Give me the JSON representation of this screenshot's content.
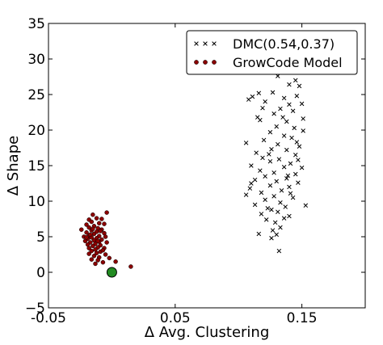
{
  "chart_data": {
    "type": "scatter",
    "xlabel": "Δ Avg. Clustering",
    "ylabel": "Δ Shape",
    "xlim": [
      -0.05,
      0.2
    ],
    "ylim": [
      -5,
      35
    ],
    "xticks": [
      {
        "value": -0.05,
        "label": "-0.05"
      },
      {
        "value": 0.05,
        "label": "0.05"
      },
      {
        "value": 0.15,
        "label": "0.15"
      }
    ],
    "yticks": [
      {
        "value": 35,
        "label": "35"
      },
      {
        "value": 30,
        "label": "30"
      },
      {
        "value": 25,
        "label": "25"
      },
      {
        "value": 20,
        "label": "20"
      },
      {
        "value": 15,
        "label": "15"
      },
      {
        "value": 10,
        "label": "10"
      },
      {
        "value": 5,
        "label": "5"
      },
      {
        "value": 0,
        "label": "0"
      },
      {
        "value": -5,
        "label": "−5"
      }
    ],
    "grid": false,
    "legend_position": "top-right",
    "legend": [
      {
        "label": "DMC(0.54,0.37)",
        "marker": "x",
        "color": "#000000"
      },
      {
        "label": "GrowCode Model",
        "marker": "circle",
        "color": "#8b0000"
      }
    ],
    "series": [
      {
        "name": "DMC(0.54,0.37)",
        "marker": "x",
        "color": "#000000",
        "points": [
          [
            0.131,
            27.6
          ],
          [
            0.14,
            26.4
          ],
          [
            0.148,
            26.2
          ],
          [
            0.145,
            27.0
          ],
          [
            0.127,
            25.3
          ],
          [
            0.116,
            25.2
          ],
          [
            0.108,
            24.3
          ],
          [
            0.111,
            24.7
          ],
          [
            0.136,
            24.5
          ],
          [
            0.146,
            24.8
          ],
          [
            0.121,
            24.0
          ],
          [
            0.14,
            23.6
          ],
          [
            0.15,
            23.7
          ],
          [
            0.133,
            23.0
          ],
          [
            0.143,
            22.7
          ],
          [
            0.128,
            22.3
          ],
          [
            0.115,
            21.8
          ],
          [
            0.151,
            21.6
          ],
          [
            0.117,
            21.4
          ],
          [
            0.138,
            21.2
          ],
          [
            0.13,
            20.5
          ],
          [
            0.144,
            20.3
          ],
          [
            0.125,
            19.7
          ],
          [
            0.151,
            19.9
          ],
          [
            0.136,
            19.2
          ],
          [
            0.12,
            18.6
          ],
          [
            0.142,
            18.9
          ],
          [
            0.106,
            18.2
          ],
          [
            0.131,
            18.0
          ],
          [
            0.148,
            17.7
          ],
          [
            0.126,
            17.3
          ],
          [
            0.138,
            17.2
          ],
          [
            0.114,
            16.8
          ],
          [
            0.145,
            16.5
          ],
          [
            0.119,
            16.1
          ],
          [
            0.132,
            15.9
          ],
          [
            0.125,
            15.6
          ],
          [
            0.141,
            15.3
          ],
          [
            0.11,
            15.0
          ],
          [
            0.136,
            14.8
          ],
          [
            0.15,
            14.7
          ],
          [
            0.117,
            14.3
          ],
          [
            0.128,
            14.0
          ],
          [
            0.145,
            13.8
          ],
          [
            0.121,
            13.5
          ],
          [
            0.138,
            13.2
          ],
          [
            0.113,
            13.0
          ],
          [
            0.13,
            12.8
          ],
          [
            0.147,
            12.6
          ],
          [
            0.125,
            12.2
          ],
          [
            0.14,
            12.0
          ],
          [
            0.109,
            11.8
          ],
          [
            0.134,
            11.5
          ],
          [
            0.118,
            11.2
          ],
          [
            0.106,
            10.9
          ],
          [
            0.128,
            10.7
          ],
          [
            0.143,
            10.5
          ],
          [
            0.121,
            10.2
          ],
          [
            0.133,
            9.8
          ],
          [
            0.113,
            9.5
          ],
          [
            0.153,
            9.4
          ],
          [
            0.137,
            9.2
          ],
          [
            0.126,
            8.8
          ],
          [
            0.131,
            8.5
          ],
          [
            0.118,
            8.2
          ],
          [
            0.14,
            7.9
          ],
          [
            0.136,
            7.6
          ],
          [
            0.122,
            7.4
          ],
          [
            0.129,
            7.0
          ],
          [
            0.133,
            6.3
          ],
          [
            0.127,
            5.9
          ],
          [
            0.116,
            5.4
          ],
          [
            0.13,
            5.3
          ],
          [
            0.126,
            4.8
          ],
          [
            0.132,
            3.0
          ],
          [
            0.141,
            11.1
          ],
          [
            0.11,
            12.5
          ],
          [
            0.124,
            16.6
          ],
          [
            0.146,
            18.3
          ],
          [
            0.135,
            21.8
          ],
          [
            0.119,
            23.1
          ],
          [
            0.139,
            13.6
          ],
          [
            0.123,
            9.0
          ],
          [
            0.147,
            15.8
          ]
        ]
      },
      {
        "name": "GrowCode Model",
        "marker": "circle",
        "color": "#8b0000",
        "points": [
          [
            -0.015,
            8.1
          ],
          [
            -0.004,
            8.4
          ],
          [
            -0.012,
            7.6
          ],
          [
            -0.018,
            7.4
          ],
          [
            -0.008,
            7.5
          ],
          [
            -0.016,
            7.1
          ],
          [
            -0.01,
            6.9
          ],
          [
            -0.02,
            6.7
          ],
          [
            -0.006,
            6.8
          ],
          [
            -0.014,
            6.5
          ],
          [
            -0.018,
            6.3
          ],
          [
            -0.011,
            6.2
          ],
          [
            -0.024,
            6.0
          ],
          [
            -0.008,
            6.0
          ],
          [
            -0.016,
            5.9
          ],
          [
            -0.012,
            5.7
          ],
          [
            -0.02,
            5.6
          ],
          [
            -0.006,
            5.5
          ],
          [
            -0.014,
            5.4
          ],
          [
            -0.018,
            5.2
          ],
          [
            -0.01,
            5.1
          ],
          [
            -0.022,
            5.0
          ],
          [
            -0.005,
            5.0
          ],
          [
            -0.016,
            4.9
          ],
          [
            -0.012,
            4.8
          ],
          [
            -0.019,
            4.7
          ],
          [
            -0.008,
            4.6
          ],
          [
            -0.014,
            4.5
          ],
          [
            -0.021,
            4.4
          ],
          [
            -0.01,
            4.3
          ],
          [
            -0.017,
            4.2
          ],
          [
            -0.004,
            4.2
          ],
          [
            -0.013,
            4.0
          ],
          [
            -0.019,
            3.9
          ],
          [
            -0.009,
            3.8
          ],
          [
            -0.015,
            3.7
          ],
          [
            -0.011,
            3.5
          ],
          [
            -0.018,
            3.4
          ],
          [
            -0.006,
            3.4
          ],
          [
            -0.013,
            3.2
          ],
          [
            -0.016,
            3.0
          ],
          [
            -0.009,
            2.9
          ],
          [
            -0.012,
            2.7
          ],
          [
            -0.018,
            2.6
          ],
          [
            -0.005,
            2.5
          ],
          [
            -0.014,
            2.3
          ],
          [
            -0.01,
            2.1
          ],
          [
            -0.002,
            2.0
          ],
          [
            -0.016,
            1.8
          ],
          [
            -0.011,
            1.7
          ],
          [
            0.003,
            1.5
          ],
          [
            -0.007,
            1.4
          ],
          [
            -0.013,
            1.2
          ],
          [
            0.015,
            0.8
          ],
          [
            -0.017,
            5.3
          ],
          [
            -0.009,
            5.8
          ],
          [
            -0.015,
            6.1
          ],
          [
            -0.011,
            4.4
          ],
          [
            -0.007,
            3.1
          ],
          [
            -0.02,
            4.9
          ]
        ]
      },
      {
        "name": "",
        "marker": "circle",
        "color": "#228b22",
        "points": [
          [
            0.0,
            0.0
          ]
        ]
      }
    ]
  }
}
